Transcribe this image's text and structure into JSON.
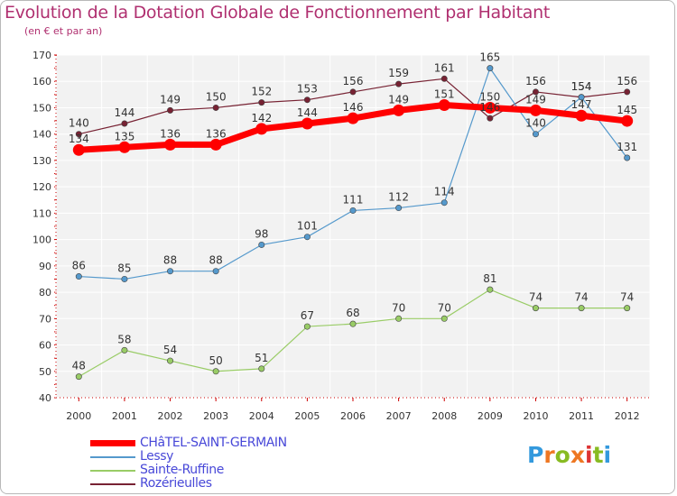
{
  "header": {
    "title": "Evolution de la Dotation Globale de Fonctionnement par Habitant",
    "subtitle": "(en € et par an)"
  },
  "logo": {
    "text": "Proxiti",
    "colors": [
      "#3399dd",
      "#ee7722",
      "#88bb22",
      "#ee7722",
      "#dd3333",
      "#88bb22",
      "#3399dd"
    ]
  },
  "chart_data": {
    "type": "line",
    "x": [
      2000,
      2001,
      2002,
      2003,
      2004,
      2005,
      2006,
      2007,
      2008,
      2009,
      2010,
      2011,
      2012
    ],
    "ylim": [
      40,
      170
    ],
    "yticks": [
      40,
      50,
      60,
      70,
      80,
      90,
      100,
      110,
      120,
      130,
      140,
      150,
      160,
      170
    ],
    "grid": true,
    "legend_position": "bottom-left",
    "series": [
      {
        "name": "CHâTEL-SAINT-GERMAIN",
        "color": "#ff0000",
        "width": 7,
        "values": [
          134,
          135,
          136,
          136,
          142,
          144,
          146,
          149,
          151,
          150,
          149,
          147,
          145
        ],
        "labels": [
          "134",
          "135",
          "136",
          "136",
          "142",
          "144",
          "146",
          "149",
          "151",
          "150",
          "149",
          "147",
          "145"
        ]
      },
      {
        "name": "Lessy",
        "color": "#5599cc",
        "width": 1.2,
        "values": [
          86,
          85,
          88,
          88,
          98,
          101,
          111,
          112,
          114,
          165,
          140,
          154,
          131
        ],
        "labels": [
          "86",
          "85",
          "88",
          "88",
          "98",
          "101",
          "111",
          "112",
          "114",
          "165",
          "140",
          "154",
          "131"
        ]
      },
      {
        "name": "Sainte-Ruffine",
        "color": "#99cc66",
        "width": 1.2,
        "values": [
          48,
          58,
          54,
          50,
          51,
          67,
          68,
          70,
          70,
          81,
          74,
          74,
          74
        ],
        "labels": [
          "48",
          "58",
          "54",
          "50",
          "51",
          "67",
          "68",
          "70",
          "70",
          "81",
          "74",
          "74",
          "74"
        ]
      },
      {
        "name": "Rozérieulles",
        "color": "#772233",
        "width": 1.2,
        "values": [
          140,
          144,
          149,
          150,
          152,
          153,
          156,
          159,
          161,
          146,
          156,
          154,
          156
        ],
        "labels": [
          "140",
          "144",
          "149",
          "150",
          "152",
          "153",
          "156",
          "159",
          "161",
          "146",
          "156",
          "154",
          "156"
        ]
      }
    ]
  }
}
